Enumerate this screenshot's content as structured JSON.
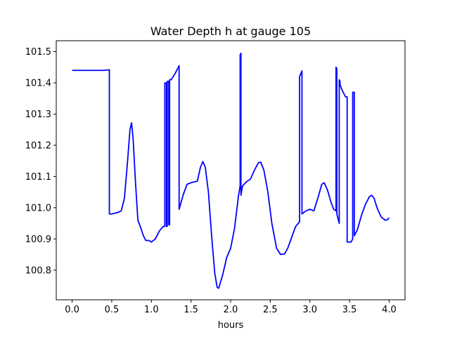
{
  "chart_data": {
    "type": "line",
    "title": "Water Depth h at gauge 105",
    "xlabel": "hours",
    "ylabel": "",
    "xlim": [
      -0.2,
      4.2
    ],
    "ylim": [
      100.705,
      101.535
    ],
    "grid": false,
    "xticks": [
      0.0,
      0.5,
      1.0,
      1.5,
      2.0,
      2.5,
      3.0,
      3.5,
      4.0
    ],
    "xtick_labels": [
      "0.0",
      "0.5",
      "1.0",
      "1.5",
      "2.0",
      "2.5",
      "3.0",
      "3.5",
      "4.0"
    ],
    "yticks": [
      100.8,
      100.9,
      101.0,
      101.1,
      101.2,
      101.3,
      101.4,
      101.5
    ],
    "ytick_labels": [
      "100.8",
      "100.9",
      "101.0",
      "101.1",
      "101.2",
      "101.3",
      "101.4",
      "101.5"
    ],
    "series": [
      {
        "color": "#0000ff",
        "x": [
          0.0,
          0.2,
          0.4,
          0.47,
          0.47,
          0.5,
          0.58,
          0.62,
          0.66,
          0.7,
          0.73,
          0.75,
          0.77,
          0.8,
          0.83,
          0.86,
          0.9,
          0.93,
          0.97,
          1.0,
          1.05,
          1.1,
          1.15,
          1.17,
          1.17,
          1.19,
          1.19,
          1.2,
          1.2,
          1.22,
          1.22,
          1.23,
          1.23,
          1.25,
          1.3,
          1.35,
          1.35,
          1.4,
          1.45,
          1.5,
          1.58,
          1.62,
          1.65,
          1.68,
          1.72,
          1.76,
          1.8,
          1.83,
          1.85,
          1.9,
          1.95,
          2.0,
          2.05,
          2.1,
          2.12,
          2.12,
          2.13,
          2.13,
          2.15,
          2.2,
          2.25,
          2.3,
          2.35,
          2.38,
          2.42,
          2.47,
          2.52,
          2.58,
          2.63,
          2.68,
          2.72,
          2.77,
          2.82,
          2.87,
          2.87,
          2.9,
          2.9,
          2.95,
          3.0,
          3.05,
          3.1,
          3.15,
          3.18,
          3.22,
          3.27,
          3.3,
          3.33,
          3.33,
          3.34,
          3.34,
          3.37,
          3.37,
          3.38,
          3.38,
          3.4,
          3.45,
          3.47,
          3.47,
          3.52,
          3.54,
          3.54,
          3.56,
          3.56,
          3.6,
          3.65,
          3.7,
          3.75,
          3.78,
          3.81,
          3.85,
          3.9,
          3.95,
          3.98,
          4.0
        ],
        "y": [
          101.44,
          101.44,
          101.44,
          101.442,
          100.98,
          100.98,
          100.985,
          100.99,
          101.03,
          101.15,
          101.25,
          101.272,
          101.22,
          101.08,
          100.96,
          100.94,
          100.91,
          100.895,
          100.895,
          100.89,
          100.9,
          100.925,
          100.94,
          100.94,
          101.4,
          101.4,
          100.94,
          100.94,
          101.405,
          101.405,
          100.945,
          100.945,
          101.41,
          101.41,
          101.43,
          101.455,
          100.995,
          101.04,
          101.075,
          101.08,
          101.085,
          101.13,
          101.148,
          101.13,
          101.05,
          100.91,
          100.79,
          100.745,
          100.742,
          100.785,
          100.84,
          100.87,
          100.935,
          101.04,
          101.07,
          101.49,
          101.495,
          101.04,
          101.07,
          101.083,
          101.092,
          101.12,
          101.144,
          101.146,
          101.12,
          101.05,
          100.95,
          100.87,
          100.85,
          100.852,
          100.87,
          100.905,
          100.94,
          100.955,
          101.42,
          101.438,
          100.98,
          100.99,
          100.995,
          100.99,
          101.03,
          101.075,
          101.08,
          101.058,
          101.015,
          100.995,
          100.99,
          101.45,
          101.445,
          100.98,
          100.95,
          101.41,
          101.405,
          101.395,
          101.38,
          101.355,
          101.355,
          100.89,
          100.89,
          100.9,
          101.37,
          101.37,
          100.91,
          100.93,
          100.975,
          101.01,
          101.035,
          101.04,
          101.03,
          100.998,
          100.97,
          100.96,
          100.962,
          100.968
        ]
      }
    ]
  }
}
